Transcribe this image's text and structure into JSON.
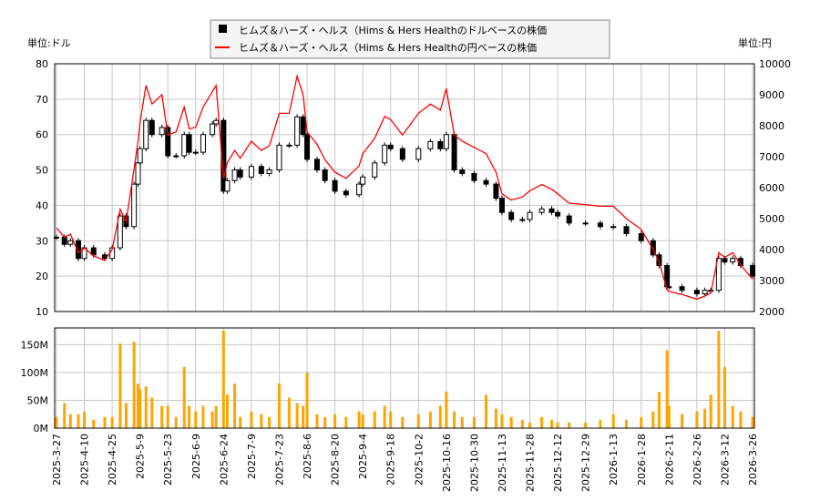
{
  "chart_data": [
    {
      "type": "candlestick+line",
      "legend": {
        "placement": "top-center",
        "entries": [
          {
            "label": "ヒムズ＆ハーズ・ヘルス（Hims & Hers Healthのドルベースの株価",
            "color": "#000000",
            "marker": "square"
          },
          {
            "label": "ヒムズ＆ハーズ・ヘルス（Hims & Hers Healthの円ベースの株価",
            "color": "#ff0000",
            "marker": "line"
          }
        ]
      },
      "ylabel_left": "単位:ドル",
      "ylabel_right": "単位:円",
      "ylim_left": [
        10,
        80
      ],
      "ylim_right": [
        2000,
        10000
      ],
      "yticks_left": [
        "10",
        "20",
        "30",
        "40",
        "50",
        "60",
        "70",
        "80"
      ],
      "yticks_right": [
        "2000",
        "3000",
        "4000",
        "5000",
        "6000",
        "7000",
        "8000",
        "9000",
        "10000"
      ],
      "grid": true,
      "xticks": [
        "2025-3-27",
        "2025-4-10",
        "2025-4-25",
        "2025-5-9",
        "2025-5-23",
        "2025-6-9",
        "2025-6-24",
        "2025-7-9",
        "2025-7-23",
        "2025-8-6",
        "2025-8-20",
        "2025-9-4",
        "2025-9-18",
        "2025-10-2",
        "2025-10-16",
        "2025-10-30",
        "2025-11-13",
        "2025-11-28",
        "2025-12-12",
        "2025-12-29",
        "2026-1-13",
        "2026-1-28",
        "2026-2-11",
        "2026-2-26",
        "2026-3-12",
        "2026-3-26"
      ],
      "dates": [
        "2025-3-27",
        "2025-3-31",
        "2025-4-3",
        "2025-4-7",
        "2025-4-10",
        "2025-4-15",
        "2025-4-21",
        "2025-4-25",
        "2025-4-29",
        "2025-5-2",
        "2025-5-6",
        "2025-5-8",
        "2025-5-9",
        "2025-5-12",
        "2025-5-15",
        "2025-5-20",
        "2025-5-23",
        "2025-5-28",
        "2025-6-2",
        "2025-6-5",
        "2025-6-9",
        "2025-6-13",
        "2025-6-18",
        "2025-6-20",
        "2025-6-24",
        "2025-6-26",
        "2025-6-30",
        "2025-7-3",
        "2025-7-9",
        "2025-7-14",
        "2025-7-18",
        "2025-7-23",
        "2025-7-28",
        "2025-8-1",
        "2025-8-4",
        "2025-8-6",
        "2025-8-11",
        "2025-8-15",
        "2025-8-20",
        "2025-8-26",
        "2025-9-2",
        "2025-9-4",
        "2025-9-10",
        "2025-9-15",
        "2025-9-18",
        "2025-9-24",
        "2025-10-2",
        "2025-10-8",
        "2025-10-13",
        "2025-10-16",
        "2025-10-20",
        "2025-10-24",
        "2025-10-30",
        "2025-11-5",
        "2025-11-10",
        "2025-11-13",
        "2025-11-18",
        "2025-11-24",
        "2025-11-28",
        "2025-12-4",
        "2025-12-9",
        "2025-12-12",
        "2025-12-19",
        "2025-12-29",
        "2026-1-6",
        "2026-1-13",
        "2026-1-20",
        "2026-1-28",
        "2026-2-3",
        "2026-2-6",
        "2026-2-10",
        "2026-2-11",
        "2026-2-18",
        "2026-2-26",
        "2026-3-2",
        "2026-3-5",
        "2026-3-9",
        "2026-3-12",
        "2026-3-16",
        "2026-3-20",
        "2026-3-26"
      ],
      "usd_close": [
        31,
        29,
        30,
        25,
        28,
        26,
        25,
        28,
        37,
        34,
        46,
        52,
        56,
        64,
        60,
        62,
        54,
        54,
        60,
        55,
        55,
        60,
        63,
        64,
        44,
        47,
        50,
        48,
        51,
        49,
        50,
        57,
        57,
        65,
        60,
        53,
        50,
        47,
        44,
        43,
        46,
        48,
        52,
        57,
        56,
        53,
        56,
        58,
        56,
        60,
        50,
        49,
        47,
        46,
        42,
        38,
        36,
        36,
        38,
        39,
        38,
        37,
        35,
        35,
        34,
        34,
        32,
        30,
        26,
        23,
        17,
        17,
        16,
        15,
        16,
        16,
        25,
        24,
        25,
        23,
        20
      ],
      "jpy_close": [
        4700,
        4400,
        4500,
        3900,
        4050,
        3800,
        3650,
        4000,
        5300,
        4900,
        6600,
        7500,
        8100,
        9300,
        8700,
        9000,
        7700,
        7800,
        8600,
        7900,
        7950,
        8600,
        9100,
        9300,
        6300,
        6800,
        7200,
        6950,
        7500,
        7200,
        7350,
        8400,
        8400,
        9600,
        9000,
        7800,
        7400,
        6900,
        6500,
        6300,
        6700,
        7100,
        7600,
        8300,
        8200,
        7700,
        8400,
        8700,
        8500,
        9200,
        7700,
        7500,
        7300,
        7100,
        6500,
        5800,
        5600,
        5700,
        5900,
        6100,
        5950,
        5800,
        5500,
        5450,
        5400,
        5400,
        5000,
        4650,
        4000,
        3600,
        2700,
        2650,
        2550,
        2400,
        2500,
        2600,
        3900,
        3750,
        3900,
        3500,
        3050
      ],
      "volume_axis": {
        "ylim": [
          0,
          180
        ],
        "yticks": [
          "0M",
          "50M",
          "100M",
          "150M"
        ]
      },
      "volume_millions": [
        20,
        45,
        25,
        25,
        30,
        15,
        20,
        20,
        152,
        45,
        155,
        80,
        70,
        75,
        55,
        40,
        40,
        20,
        110,
        40,
        30,
        40,
        30,
        40,
        175,
        60,
        80,
        20,
        30,
        25,
        20,
        80,
        55,
        45,
        40,
        100,
        25,
        20,
        25,
        20,
        30,
        25,
        30,
        40,
        30,
        20,
        25,
        30,
        40,
        65,
        30,
        20,
        20,
        60,
        35,
        25,
        20,
        15,
        10,
        20,
        15,
        10,
        10,
        10,
        15,
        25,
        15,
        20,
        30,
        65,
        140,
        40,
        25,
        30,
        35,
        60,
        175,
        110,
        40,
        30,
        20
      ],
      "colors": {
        "usd": "#000000",
        "jpy": "#ff0000",
        "volume": "#ffa500"
      }
    }
  ]
}
